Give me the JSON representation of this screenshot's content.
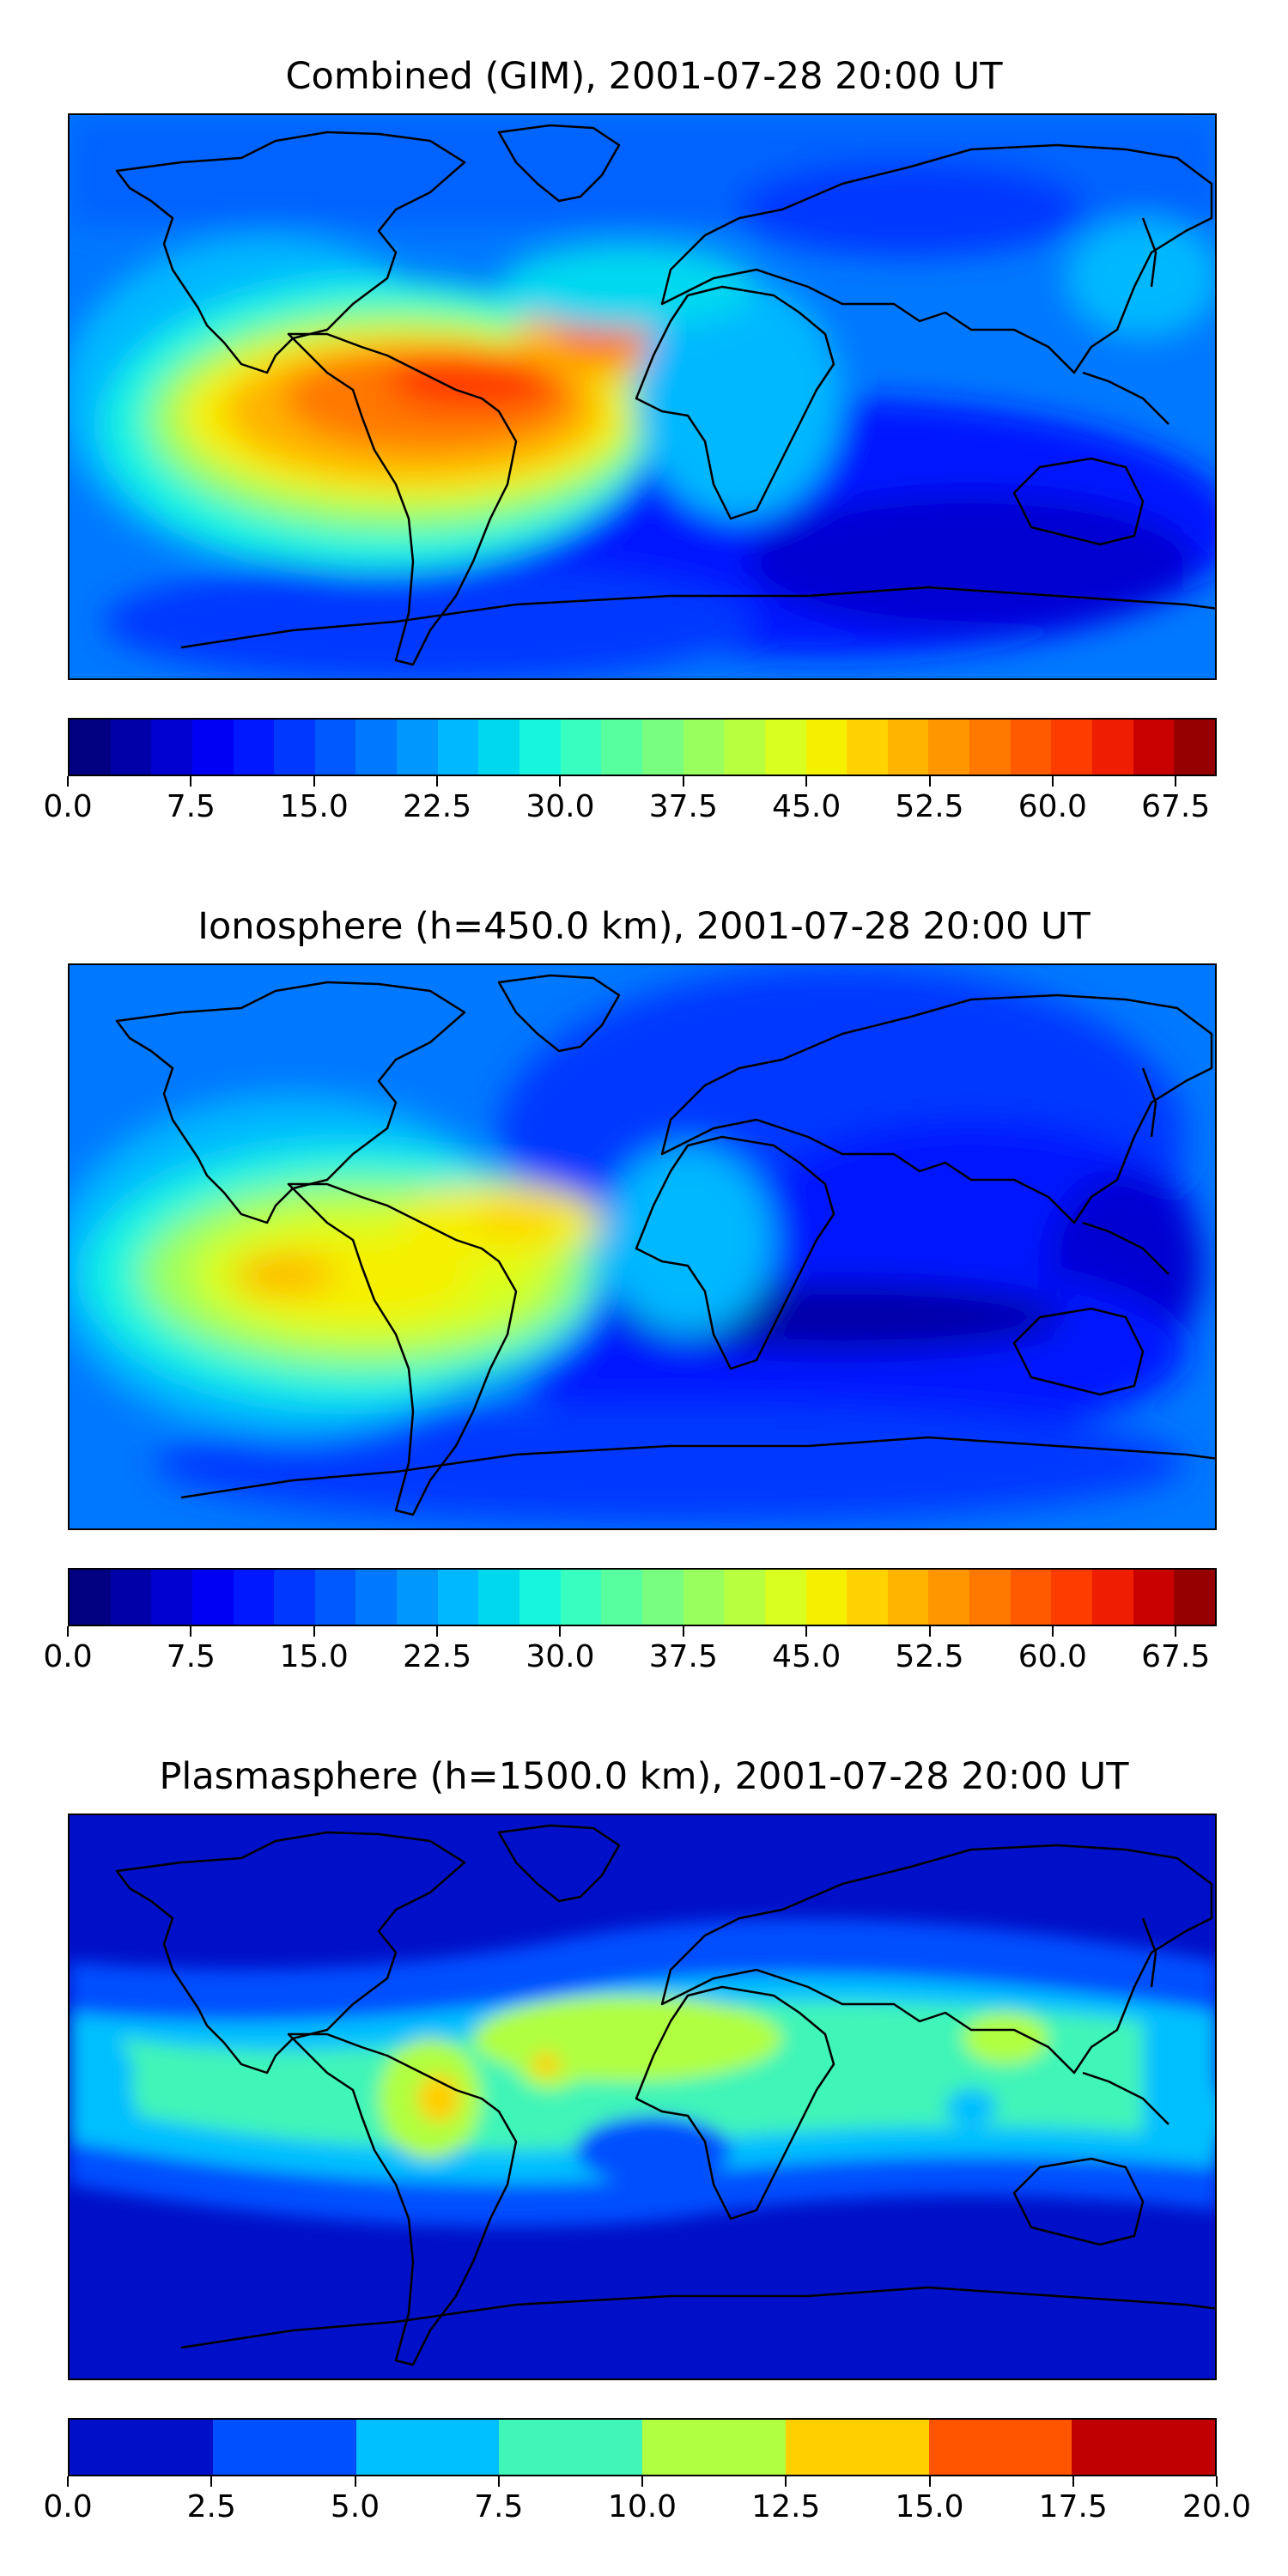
{
  "panels": [
    {
      "title": "Combined (GIM), 2001-07-28 20:00 UT",
      "colorbar": {
        "min": 0.0,
        "max": 70.0,
        "levels": 28,
        "tick_labels": [
          "0.0",
          "7.5",
          "15.0",
          "22.5",
          "30.0",
          "37.5",
          "45.0",
          "52.5",
          "60.0",
          "67.5"
        ],
        "colors": [
          "#000080",
          "#0000a8",
          "#0000d1",
          "#0000f5",
          "#0018ff",
          "#0038ff",
          "#0058ff",
          "#0078ff",
          "#0098ff",
          "#00b8ff",
          "#00d8f0",
          "#18f5df",
          "#38ffbf",
          "#58ff9f",
          "#78ff7f",
          "#98ff5f",
          "#b8ff3f",
          "#d8ff1f",
          "#f5f000",
          "#ffd200",
          "#ffb400",
          "#ff9600",
          "#ff7800",
          "#ff5a00",
          "#ff3c00",
          "#f01e00",
          "#c80000",
          "#960000"
        ]
      }
    },
    {
      "title": "Ionosphere  (h=450.0 km), 2001-07-28 20:00 UT",
      "colorbar": {
        "min": 0.0,
        "max": 70.0,
        "levels": 28,
        "tick_labels": [
          "0.0",
          "7.5",
          "15.0",
          "22.5",
          "30.0",
          "37.5",
          "45.0",
          "52.5",
          "60.0",
          "67.5"
        ],
        "colors": [
          "#000080",
          "#0000a8",
          "#0000d1",
          "#0000f5",
          "#0018ff",
          "#0038ff",
          "#0058ff",
          "#0078ff",
          "#0098ff",
          "#00b8ff",
          "#00d8f0",
          "#18f5df",
          "#38ffbf",
          "#58ff9f",
          "#78ff7f",
          "#98ff5f",
          "#b8ff3f",
          "#d8ff1f",
          "#f5f000",
          "#ffd200",
          "#ffb400",
          "#ff9600",
          "#ff7800",
          "#ff5a00",
          "#ff3c00",
          "#f01e00",
          "#c80000",
          "#960000"
        ]
      }
    },
    {
      "title": "Plasmasphere (h=1500.0 km), 2001-07-28 20:00 UT",
      "colorbar": {
        "min": 0.0,
        "max": 20.0,
        "levels": 8,
        "tick_labels": [
          "0.0",
          "2.5",
          "5.0",
          "7.5",
          "10.0",
          "12.5",
          "15.0",
          "17.5",
          "20.0"
        ],
        "colors": [
          "#0010c8",
          "#0050ff",
          "#00bfff",
          "#40f5b8",
          "#b0ff40",
          "#ffcf00",
          "#ff5500",
          "#c00000"
        ]
      }
    }
  ]
}
